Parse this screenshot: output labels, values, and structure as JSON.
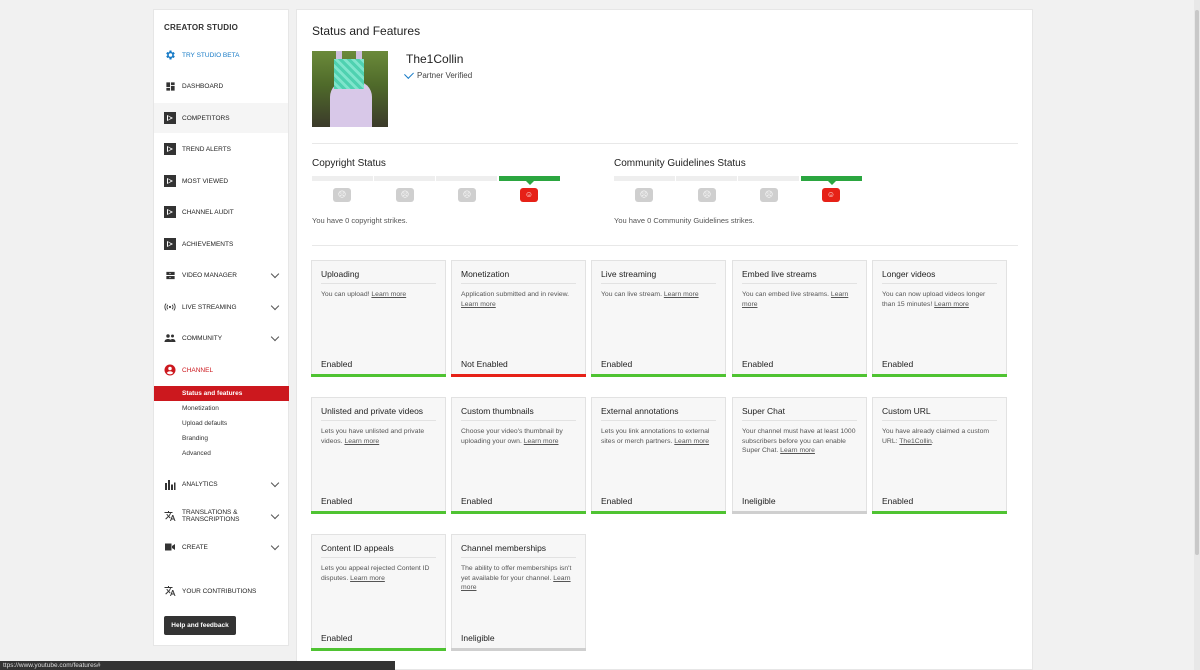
{
  "sidebar": {
    "title": "CREATOR STUDIO",
    "items": [
      {
        "label": "TRY STUDIO BETA",
        "icon": "gear-icon"
      },
      {
        "label": "DASHBOARD",
        "icon": "dashboard-icon"
      },
      {
        "label": "COMPETITORS",
        "icon": "video-play-icon"
      },
      {
        "label": "TREND ALERTS",
        "icon": "video-play-icon"
      },
      {
        "label": "MOST VIEWED",
        "icon": "video-play-icon"
      },
      {
        "label": "CHANNEL AUDIT",
        "icon": "video-play-icon"
      },
      {
        "label": "ACHIEVEMENTS",
        "icon": "video-play-icon"
      },
      {
        "label": "VIDEO MANAGER",
        "icon": "video-manager-icon"
      },
      {
        "label": "LIVE STREAMING",
        "icon": "broadcast-icon"
      },
      {
        "label": "COMMUNITY",
        "icon": "people-icon"
      },
      {
        "label": "CHANNEL",
        "icon": "account-circle-icon"
      },
      {
        "label": "ANALYTICS",
        "icon": "bar-chart-icon"
      },
      {
        "label": "TRANSLATIONS & TRANSCRIPTIONS",
        "icon": "translate-icon"
      },
      {
        "label": "CREATE",
        "icon": "video-camera-icon"
      },
      {
        "label": "YOUR CONTRIBUTIONS",
        "icon": "translate-icon"
      }
    ],
    "channel_sub": [
      "Status and features",
      "Monetization",
      "Upload defaults",
      "Branding",
      "Advanced"
    ],
    "help_label": "Help and feedback"
  },
  "main": {
    "title": "Status and Features",
    "channel_name": "The1Collin",
    "verified": "Partner Verified",
    "copyright": {
      "title": "Copyright Status",
      "message": "You have 0 copyright strikes."
    },
    "community": {
      "title": "Community Guidelines Status",
      "message": "You have 0 Community Guidelines strikes."
    },
    "cards": [
      {
        "title": "Uploading",
        "desc": "You can upload! ",
        "link": "Learn more",
        "status": "Enabled"
      },
      {
        "title": "Monetization",
        "desc": "Application submitted and in review. ",
        "link": "Learn more",
        "status": "Not Enabled"
      },
      {
        "title": "Live streaming",
        "desc": "You can live stream. ",
        "link": "Learn more",
        "status": "Enabled"
      },
      {
        "title": "Embed live streams",
        "desc": "You can embed live streams. ",
        "link": "Learn more",
        "status": "Enabled"
      },
      {
        "title": "Longer videos",
        "desc": "You can now upload videos longer than 15 minutes! ",
        "link": "Learn more",
        "status": "Enabled"
      },
      {
        "title": "Unlisted and private videos",
        "desc": "Lets you have unlisted and private videos. ",
        "link": "Learn more",
        "status": "Enabled"
      },
      {
        "title": "Custom thumbnails",
        "desc": "Choose your video's thumbnail by uploading your own. ",
        "link": "Learn more",
        "status": "Enabled"
      },
      {
        "title": "External annotations",
        "desc": "Lets you link annotations to external sites or merch partners. ",
        "link": "Learn more",
        "status": "Enabled"
      },
      {
        "title": "Super Chat",
        "desc": "Your channel must have at least 1000 subscribers before you can enable Super Chat. ",
        "link": "Learn more",
        "status": "Ineligible"
      },
      {
        "title": "Custom URL",
        "desc": "You have already claimed a custom URL: ",
        "link": "The1Collin",
        "link_suffix": ".",
        "status": "Enabled"
      },
      {
        "title": "Content ID appeals",
        "desc": "Lets you appeal rejected Content ID disputes. ",
        "link": "Learn more",
        "status": "Enabled"
      },
      {
        "title": "Channel memberships",
        "desc": "The ability to offer memberships isn't yet available for your channel. ",
        "link": "Learn more",
        "status": "Ineligible"
      }
    ]
  },
  "status_url": "ttps://www.youtube.com/features#",
  "colors": {
    "red": "#cc181e",
    "green": "#4fc332",
    "blue": "#167ac6"
  }
}
